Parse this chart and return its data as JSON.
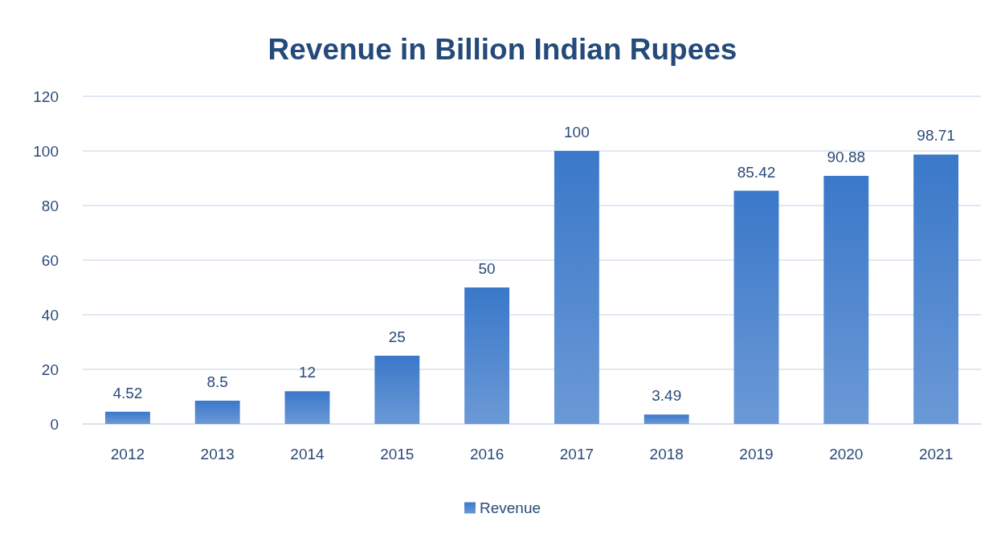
{
  "chart_data": {
    "type": "bar",
    "title": "Revenue in Billion Indian Rupees",
    "categories": [
      "2012",
      "2013",
      "2014",
      "2015",
      "2016",
      "2017",
      "2018",
      "2019",
      "2020",
      "2021"
    ],
    "series": [
      {
        "name": "Revenue",
        "color": "#3a78c9",
        "values": [
          4.52,
          8.5,
          12,
          25,
          50,
          100,
          3.49,
          85.42,
          90.88,
          98.71
        ]
      }
    ],
    "ylim": [
      0,
      120
    ],
    "yticks": [
      0,
      20,
      40,
      60,
      80,
      100,
      120
    ],
    "grid": "y",
    "legend": "bottom",
    "data_labels": true
  }
}
